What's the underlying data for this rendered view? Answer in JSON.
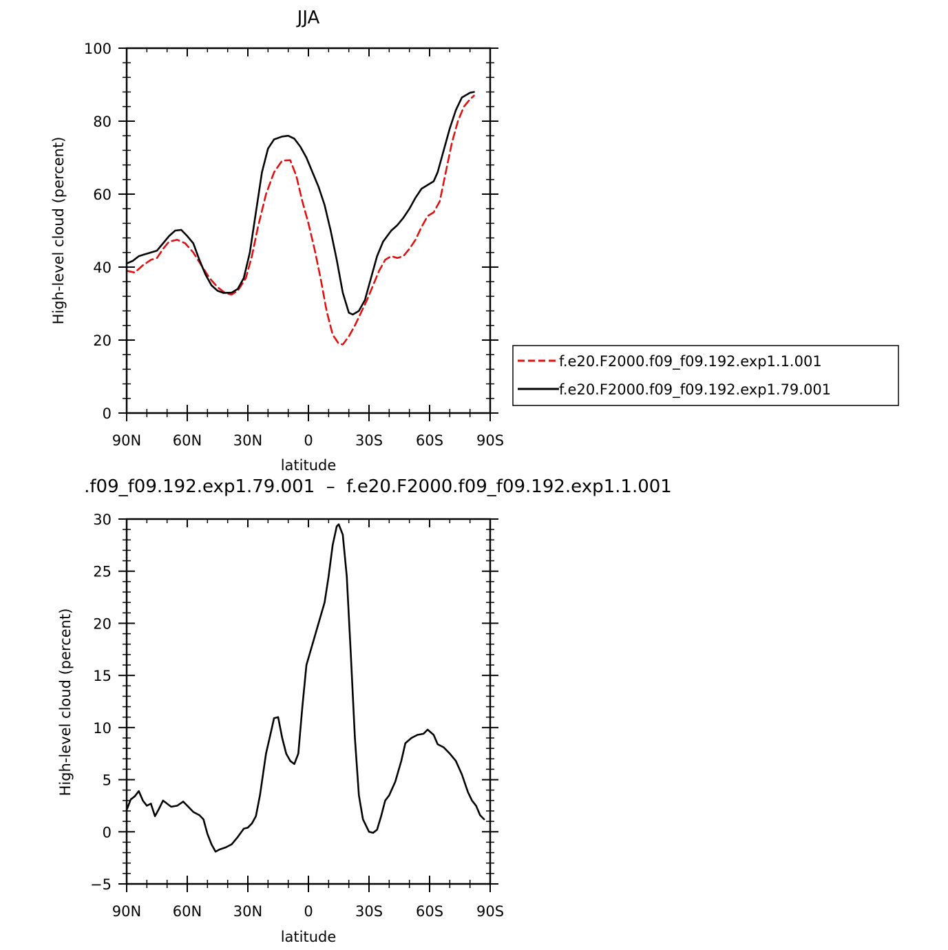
{
  "chart_data": [
    {
      "type": "line",
      "title": "JJA",
      "xlabel": "latitude",
      "ylabel": "High-level cloud (percent)",
      "xlim": [
        -90,
        90
      ],
      "ylim": [
        0,
        100
      ],
      "x_ticks": [
        -90,
        -60,
        -30,
        0,
        30,
        60,
        90
      ],
      "x_tick_labels": [
        "90N",
        "60N",
        "30N",
        "0",
        "30S",
        "60S",
        "90S"
      ],
      "y_ticks": [
        0,
        20,
        40,
        60,
        80,
        100
      ],
      "y_tick_labels": [
        "0",
        "20",
        "40",
        "60",
        "80",
        "100"
      ],
      "legend_position": "right",
      "series": [
        {
          "name": "f.e20.F2000.f09_f09.192.exp1.1.001",
          "color": "#e01010",
          "dash": "dashed",
          "points": [
            [
              -90,
              39
            ],
            [
              -86,
              38.5
            ],
            [
              -82,
              40.5
            ],
            [
              -78,
              42
            ],
            [
              -75,
              42.5
            ],
            [
              -72,
              45
            ],
            [
              -69,
              47
            ],
            [
              -65,
              47.5
            ],
            [
              -61,
              46.5
            ],
            [
              -57,
              44
            ],
            [
              -53,
              40.5
            ],
            [
              -49,
              37
            ],
            [
              -45,
              34.5
            ],
            [
              -41,
              32.8
            ],
            [
              -38,
              32.5
            ],
            [
              -35,
              33.5
            ],
            [
              -31,
              37
            ],
            [
              -28,
              43
            ],
            [
              -25,
              51
            ],
            [
              -21,
              60
            ],
            [
              -17,
              66
            ],
            [
              -13,
              69.2
            ],
            [
              -9,
              69.3
            ],
            [
              -6,
              65
            ],
            [
              -3,
              58
            ],
            [
              0,
              52
            ],
            [
              3,
              45
            ],
            [
              6,
              37
            ],
            [
              9,
              28
            ],
            [
              12,
              21.5
            ],
            [
              15,
              19
            ],
            [
              17,
              18.8
            ],
            [
              20,
              21
            ],
            [
              23,
              24
            ],
            [
              26,
              27.5
            ],
            [
              29,
              31
            ],
            [
              32,
              35
            ],
            [
              35,
              39
            ],
            [
              38,
              42
            ],
            [
              41,
              43
            ],
            [
              44,
              42.5
            ],
            [
              47,
              43
            ],
            [
              50,
              45
            ],
            [
              53,
              47.5
            ],
            [
              56,
              51
            ],
            [
              59,
              54
            ],
            [
              62,
              55
            ],
            [
              65,
              58
            ],
            [
              68,
              66
            ],
            [
              71,
              74
            ],
            [
              74,
              80
            ],
            [
              77,
              84
            ],
            [
              80,
              86
            ],
            [
              82,
              87
            ]
          ]
        },
        {
          "name": "f.e20.F2000.f09_f09.192.exp1.79.001",
          "color": "#000000",
          "dash": "solid",
          "points": [
            [
              -90,
              41
            ],
            [
              -87,
              41.7
            ],
            [
              -84,
              43
            ],
            [
              -81,
              43.5
            ],
            [
              -78,
              44
            ],
            [
              -75,
              44.5
            ],
            [
              -72,
              46.5
            ],
            [
              -69,
              48.5
            ],
            [
              -66,
              50
            ],
            [
              -63,
              50.2
            ],
            [
              -60,
              48.5
            ],
            [
              -57,
              46.5
            ],
            [
              -54,
              42
            ],
            [
              -51,
              38
            ],
            [
              -48,
              35
            ],
            [
              -45,
              33.5
            ],
            [
              -42,
              32.9
            ],
            [
              -38,
              33
            ],
            [
              -35,
              34
            ],
            [
              -32,
              37
            ],
            [
              -29,
              44
            ],
            [
              -26,
              55
            ],
            [
              -23,
              66
            ],
            [
              -20,
              72.5
            ],
            [
              -17,
              75
            ],
            [
              -13,
              75.8
            ],
            [
              -10,
              76
            ],
            [
              -7,
              75.2
            ],
            [
              -4,
              73
            ],
            [
              -1,
              70
            ],
            [
              2,
              66
            ],
            [
              5,
              62
            ],
            [
              8,
              57
            ],
            [
              11,
              50
            ],
            [
              14,
              42
            ],
            [
              17,
              33
            ],
            [
              20,
              27.5
            ],
            [
              22,
              27
            ],
            [
              25,
              28
            ],
            [
              28,
              31
            ],
            [
              31,
              37
            ],
            [
              34,
              43
            ],
            [
              37,
              47
            ],
            [
              41,
              50
            ],
            [
              44,
              51.5
            ],
            [
              47,
              53.5
            ],
            [
              50,
              56
            ],
            [
              53,
              59
            ],
            [
              56,
              61.5
            ],
            [
              59,
              62.5
            ],
            [
              62,
              63.5
            ],
            [
              64,
              66
            ],
            [
              67,
              72
            ],
            [
              70,
              78
            ],
            [
              73,
              83
            ],
            [
              76,
              86.5
            ],
            [
              80,
              87.8
            ],
            [
              82,
              88
            ]
          ]
        }
      ]
    },
    {
      "type": "line",
      "title": ".f09_f09.192.exp1.79.001  –  f.e20.F2000.f09_f09.192.exp1.1.001",
      "xlabel": "latitude",
      "ylabel": "High-level cloud (percent)",
      "xlim": [
        -90,
        90
      ],
      "ylim": [
        -5,
        30
      ],
      "x_ticks": [
        -90,
        -60,
        -30,
        0,
        30,
        60,
        90
      ],
      "x_tick_labels": [
        "90N",
        "60N",
        "30N",
        "0",
        "30S",
        "60S",
        "90S"
      ],
      "y_ticks": [
        -5,
        0,
        5,
        10,
        15,
        20,
        25,
        30
      ],
      "y_tick_labels": [
        "−5",
        "0",
        "5",
        "10",
        "15",
        "20",
        "25",
        "30"
      ],
      "series": [
        {
          "color": "#000000",
          "dash": "solid",
          "points": [
            [
              -90,
              2.1
            ],
            [
              -88,
              3.1
            ],
            [
              -86,
              3.4
            ],
            [
              -84,
              3.9
            ],
            [
              -82,
              3
            ],
            [
              -80,
              2.5
            ],
            [
              -78,
              2.7
            ],
            [
              -76,
              1.5
            ],
            [
              -74,
              2.2
            ],
            [
              -72,
              3
            ],
            [
              -70,
              2.7
            ],
            [
              -68,
              2.4
            ],
            [
              -65,
              2.5
            ],
            [
              -62,
              2.9
            ],
            [
              -60,
              2.5
            ],
            [
              -57,
              1.9
            ],
            [
              -54,
              1.6
            ],
            [
              -52,
              1.2
            ],
            [
              -50,
              -0.2
            ],
            [
              -48,
              -1.2
            ],
            [
              -46,
              -1.9
            ],
            [
              -44,
              -1.7
            ],
            [
              -41,
              -1.5
            ],
            [
              -38,
              -1.2
            ],
            [
              -35,
              -0.5
            ],
            [
              -32,
              0.3
            ],
            [
              -30,
              0.4
            ],
            [
              -28,
              0.8
            ],
            [
              -26,
              1.5
            ],
            [
              -24,
              3.5
            ],
            [
              -21,
              7.5
            ],
            [
              -19,
              9.2
            ],
            [
              -17,
              10.9
            ],
            [
              -15,
              11
            ],
            [
              -13,
              9
            ],
            [
              -11,
              7.5
            ],
            [
              -9,
              6.8
            ],
            [
              -7,
              6.5
            ],
            [
              -5,
              7.5
            ],
            [
              -3,
              12
            ],
            [
              -1,
              16
            ],
            [
              2,
              18
            ],
            [
              5,
              20
            ],
            [
              8,
              22
            ],
            [
              10,
              24.5
            ],
            [
              12,
              27.5
            ],
            [
              14,
              29.3
            ],
            [
              15,
              29.5
            ],
            [
              17,
              28.5
            ],
            [
              19,
              24.5
            ],
            [
              21,
              17
            ],
            [
              23,
              9
            ],
            [
              25,
              3.5
            ],
            [
              27,
              1.2
            ],
            [
              30,
              0
            ],
            [
              32,
              -0.1
            ],
            [
              34,
              0.2
            ],
            [
              36,
              1.5
            ],
            [
              38,
              3
            ],
            [
              40,
              3.5
            ],
            [
              43,
              4.8
            ],
            [
              46,
              6.8
            ],
            [
              48,
              8.5
            ],
            [
              51,
              9
            ],
            [
              54,
              9.3
            ],
            [
              57,
              9.4
            ],
            [
              59,
              9.8
            ],
            [
              62,
              9.3
            ],
            [
              64,
              8.4
            ],
            [
              67,
              8.1
            ],
            [
              70,
              7.5
            ],
            [
              73,
              6.8
            ],
            [
              76,
              5.5
            ],
            [
              79,
              3.8
            ],
            [
              81,
              3
            ],
            [
              83,
              2.5
            ],
            [
              85,
              1.6
            ],
            [
              87,
              1.2
            ]
          ]
        }
      ]
    }
  ]
}
